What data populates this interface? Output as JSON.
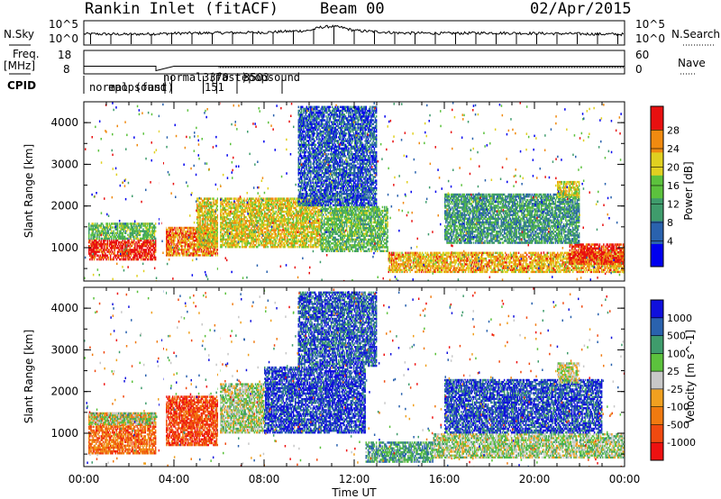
{
  "header": {
    "station": "Rankin Inlet (fitACF)",
    "beam": "Beam 00",
    "date": "02/Apr/2015"
  },
  "chart_data": [
    {
      "type": "line",
      "panel": "noise",
      "labels": {
        "left": "N.Sky",
        "right": "N.Search"
      },
      "y_ticks_left": [
        "10^5",
        "10^0"
      ],
      "y_ticks_right": [
        "10^5",
        "10^0"
      ],
      "x": [
        0,
        2,
        4,
        6,
        8,
        10,
        10.5,
        11,
        11.5,
        12,
        14,
        16,
        18,
        20,
        22,
        24
      ],
      "values": [
        2.2,
        2.1,
        2.3,
        2.4,
        2.5,
        2.9,
        3.6,
        3.8,
        3.5,
        2.9,
        2.4,
        2.3,
        2.4,
        2.3,
        2.2,
        2.1
      ]
    },
    {
      "type": "line",
      "panel": "frequency",
      "labels": {
        "left_top": "Freq.",
        "left_bottom": "[MHz]",
        "right": "Nave"
      },
      "y_ticks_left": [
        "18",
        "8"
      ],
      "y_ticks_right": [
        "60",
        "0"
      ],
      "x": [
        0,
        3.2,
        3.2,
        4,
        6,
        24
      ],
      "freq_mhz": [
        11,
        11,
        9,
        11,
        11,
        11
      ],
      "cpid_label": "CPID",
      "cpid_segments": [
        {
          "label": "normal (fast)",
          "start": 0.0
        },
        {
          "label": "epopsound",
          "start": 3.6
        },
        {
          "label": "normal (fast)",
          "start": 3.9
        },
        {
          "label": "151",
          "start": 5.3
        },
        {
          "label": "3370",
          "start": 5.9
        },
        {
          "label": "epopsound",
          "start": 6.8
        },
        {
          "label": "3503",
          "start": 8.8
        }
      ]
    },
    {
      "type": "heatmap",
      "panel": "power",
      "ylabel": "Slant Range [km]",
      "ylim": [
        200,
        4500
      ],
      "y_ticks": [
        1000,
        2000,
        3000,
        4000
      ],
      "colorbar": {
        "label": "Power [dB]",
        "ticks": [
          "28",
          "24",
          "20",
          "16",
          "12",
          "8",
          "4"
        ],
        "colors": [
          "#0000ee",
          "#2a62ae",
          "#3f9c6c",
          "#5cc23d",
          "#e0d020",
          "#f08a10",
          "#e81010"
        ]
      },
      "regions": [
        {
          "x": [
            0.2,
            3.2
          ],
          "y": [
            700,
            1200
          ],
          "level": 0.95
        },
        {
          "x": [
            0.2,
            3.2
          ],
          "y": [
            1200,
            1600
          ],
          "level": 0.45
        },
        {
          "x": [
            3.6,
            6.0
          ],
          "y": [
            800,
            1500
          ],
          "level": 0.8
        },
        {
          "x": [
            5.0,
            10.5
          ],
          "y": [
            1000,
            2200
          ],
          "level": 0.65
        },
        {
          "x": [
            10.5,
            13.5
          ],
          "y": [
            900,
            2000
          ],
          "level": 0.45
        },
        {
          "x": [
            13.5,
            24
          ],
          "y": [
            400,
            900
          ],
          "level": 0.72
        },
        {
          "x": [
            21.5,
            24
          ],
          "y": [
            600,
            1100
          ],
          "level": 0.92
        },
        {
          "x": [
            16,
            22
          ],
          "y": [
            1100,
            2300
          ],
          "level": 0.35
        },
        {
          "x": [
            21.0,
            22.0
          ],
          "y": [
            2200,
            2600
          ],
          "level": 0.62
        },
        {
          "x": [
            9.5,
            13.0
          ],
          "y": [
            2000,
            4400
          ],
          "level": 0.2
        }
      ]
    },
    {
      "type": "heatmap",
      "panel": "velocity",
      "ylabel": "Slant Range [km]",
      "ylim": [
        200,
        4500
      ],
      "y_ticks": [
        1000,
        2000,
        3000,
        4000
      ],
      "xlabel": "Time UT",
      "xlim": [
        0,
        24
      ],
      "x_ticks": [
        "00:00",
        "04:00",
        "08:00",
        "12:00",
        "16:00",
        "20:00",
        "00:00"
      ],
      "colorbar": {
        "label": "Velocity [m s^-1]",
        "ticks": [
          "1000",
          "500",
          "100",
          "25",
          "-25",
          "-100",
          "-500",
          "-1000"
        ],
        "colors": [
          "#ee1111",
          "#f04a10",
          "#f07a10",
          "#f0a020",
          "#c8c8c8",
          "#5cc23d",
          "#3f9c6c",
          "#2a62ae",
          "#1010dd"
        ]
      },
      "regions": [
        {
          "x": [
            0.2,
            3.2
          ],
          "y": [
            500,
            1500
          ],
          "level": 0.75
        },
        {
          "x": [
            0.2,
            3.2
          ],
          "y": [
            1200,
            1500
          ],
          "level": 0.45
        },
        {
          "x": [
            3.6,
            6.0
          ],
          "y": [
            700,
            1900
          ],
          "level": 0.85
        },
        {
          "x": [
            6.0,
            8.0
          ],
          "y": [
            1000,
            2200
          ],
          "level": 0.45
        },
        {
          "x": [
            8.0,
            12.5
          ],
          "y": [
            1000,
            2600
          ],
          "level": 0.1
        },
        {
          "x": [
            12.5,
            15.5
          ],
          "y": [
            300,
            800
          ],
          "level": 0.3
        },
        {
          "x": [
            15.5,
            24
          ],
          "y": [
            400,
            1000
          ],
          "level": 0.45
        },
        {
          "x": [
            16,
            23
          ],
          "y": [
            1000,
            2300
          ],
          "level": 0.12
        },
        {
          "x": [
            21.0,
            22.0
          ],
          "y": [
            2200,
            2700
          ],
          "level": 0.5
        },
        {
          "x": [
            9.5,
            13.0
          ],
          "y": [
            2600,
            4400
          ],
          "level": 0.15
        }
      ]
    }
  ]
}
